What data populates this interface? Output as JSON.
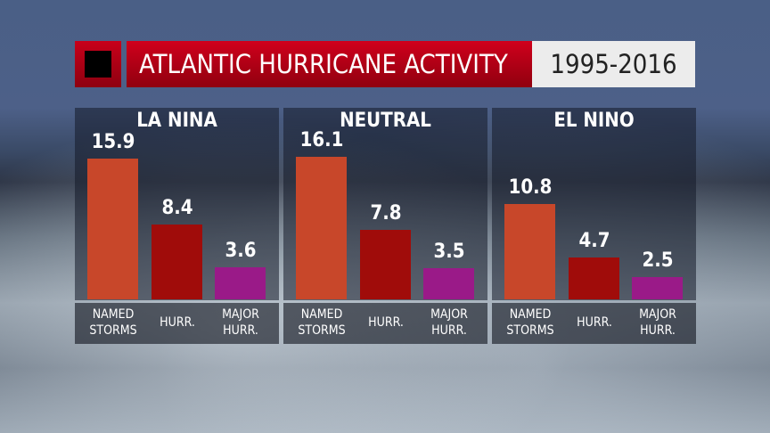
{
  "header": {
    "title": "ATLANTIC HURRICANE ACTIVITY",
    "years": "1995-2016",
    "accent": "#c8001a"
  },
  "chart_data": {
    "type": "bar",
    "title": "ATLANTIC HURRICANE ACTIVITY",
    "subtitle": "1995-2016",
    "groups": [
      "LA NINA",
      "NEUTRAL",
      "EL NINO"
    ],
    "categories": [
      "NAMED STORMS",
      "HURR.",
      "MAJOR HURR."
    ],
    "category_labels": [
      [
        "NAMED",
        "STORMS"
      ],
      [
        "HURR."
      ],
      [
        "MAJOR",
        "HURR."
      ]
    ],
    "colors": [
      "#c8472a",
      "#a00c0a",
      "#9a1a88"
    ],
    "series": [
      {
        "name": "LA NINA",
        "values": [
          15.9,
          8.4,
          3.6
        ],
        "labels": [
          "15.9",
          "8.4",
          "3.6"
        ]
      },
      {
        "name": "NEUTRAL",
        "values": [
          16.1,
          7.8,
          3.5
        ],
        "labels": [
          "16.1",
          "7.8",
          "3.5"
        ]
      },
      {
        "name": "EL NINO",
        "values": [
          10.8,
          4.7,
          2.5
        ],
        "labels": [
          "10.8",
          "4.7",
          "2.5"
        ]
      }
    ],
    "ylim": [
      0,
      17
    ],
    "grid": false,
    "legend": "none"
  }
}
